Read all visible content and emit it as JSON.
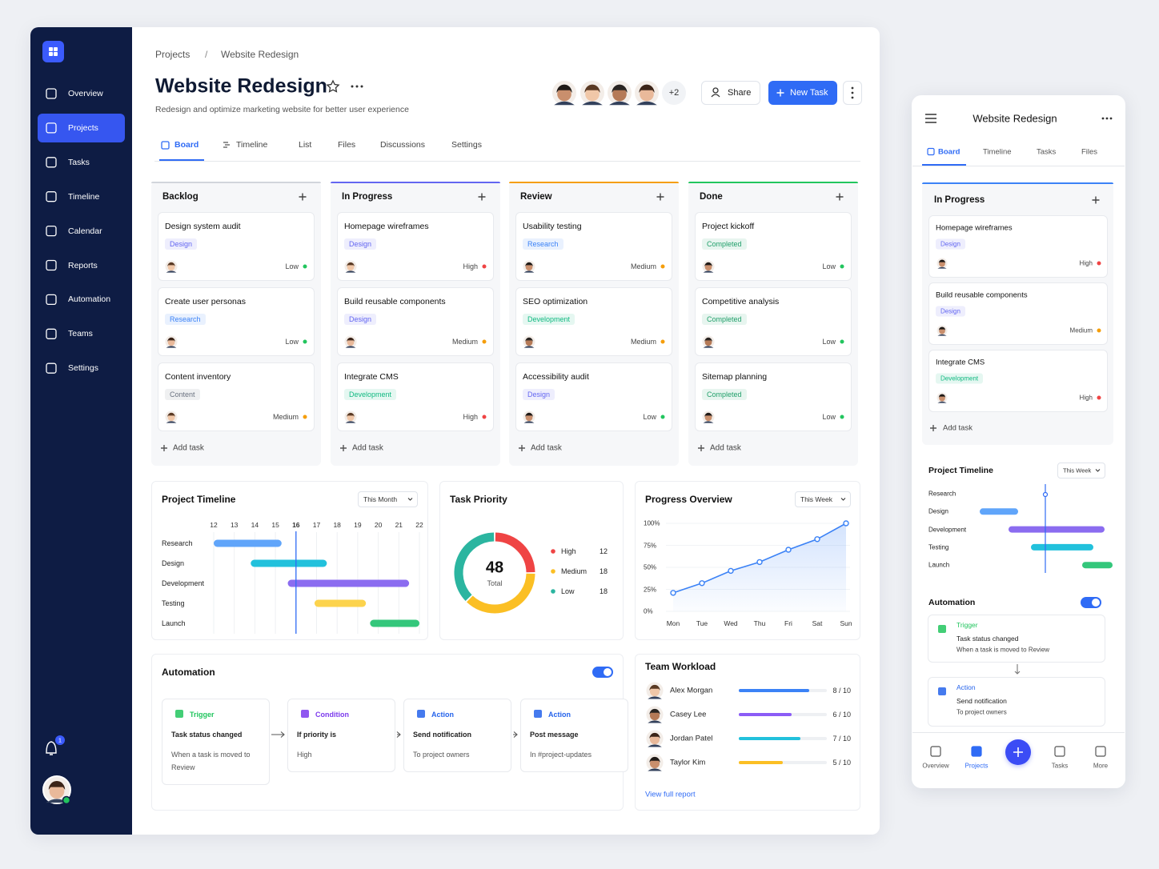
{
  "sidebar": {
    "nav": [
      "Overview",
      "Projects",
      "Tasks",
      "Timeline",
      "Calendar",
      "Reports",
      "Automation",
      "Teams",
      "Settings"
    ],
    "active": 1,
    "notifications": 1
  },
  "header": {
    "breadcrumb": [
      "Projects",
      "Website Redesign"
    ],
    "separator": "/",
    "title": "Website Redesign",
    "subtitle": "Redesign and optimize marketing website for better user experience",
    "more_members": "+2",
    "share": "Share",
    "new_task": "New Task"
  },
  "tabs": {
    "items": [
      "Board",
      "Timeline",
      "List",
      "Files",
      "Discussions",
      "Settings"
    ],
    "active": 0
  },
  "board": {
    "add_task": "Add task",
    "tag_colors": {
      "Design": "#6366f1",
      "Research": "#3b82f6",
      "Content": "#6b7280",
      "Development": "#10b981",
      "Completed": "#22a06b"
    },
    "priority_colors": {
      "Low": "#22c55e",
      "Medium": "#f59e0b",
      "High": "#ef4444"
    },
    "columns": [
      {
        "name": "Backlog",
        "color": "#d1d5db",
        "cards": [
          {
            "title": "Design system audit",
            "tag": "Design",
            "priority": "Low"
          },
          {
            "title": "Create user personas",
            "tag": "Research",
            "priority": "Low"
          },
          {
            "title": "Content inventory",
            "tag": "Content",
            "priority": "Medium"
          }
        ]
      },
      {
        "name": "In Progress",
        "color": "#6366f1",
        "cards": [
          {
            "title": "Homepage wireframes",
            "tag": "Design",
            "priority": "High"
          },
          {
            "title": "Build reusable components",
            "tag": "Design",
            "priority": "Medium"
          },
          {
            "title": "Integrate CMS",
            "tag": "Development",
            "priority": "High"
          }
        ]
      },
      {
        "name": "Review",
        "color": "#f59e0b",
        "cards": [
          {
            "title": "Usability testing",
            "tag": "Research",
            "priority": "Medium"
          },
          {
            "title": "SEO optimization",
            "tag": "Development",
            "priority": "Medium"
          },
          {
            "title": "Accessibility audit",
            "tag": "Design",
            "priority": "Low"
          }
        ]
      },
      {
        "name": "Done",
        "color": "#22c55e",
        "cards": [
          {
            "title": "Project kickoff",
            "tag": "Completed",
            "priority": "Low"
          },
          {
            "title": "Competitive analysis",
            "tag": "Completed",
            "priority": "Low"
          },
          {
            "title": "Sitemap planning",
            "tag": "Completed",
            "priority": "Low"
          }
        ]
      }
    ]
  },
  "project_timeline": {
    "title": "Project Timeline",
    "range": "This Month",
    "xlim": [
      12,
      22
    ],
    "xticks": [
      12,
      13,
      14,
      15,
      16,
      17,
      18,
      19,
      20,
      21,
      22
    ],
    "today": 16,
    "tasks": [
      {
        "name": "Research",
        "start": 12,
        "end": 15.3,
        "color": "#60a5fa"
      },
      {
        "name": "Design",
        "start": 13.8,
        "end": 17.5,
        "color": "#22c1dc"
      },
      {
        "name": "Development",
        "start": 15.6,
        "end": 21.5,
        "color": "#8b6cf0"
      },
      {
        "name": "Testing",
        "start": 16.9,
        "end": 19.4,
        "color": "#fcd34d"
      },
      {
        "name": "Launch",
        "start": 19.6,
        "end": 22,
        "color": "#34c77b"
      }
    ]
  },
  "task_priority": {
    "title": "Task Priority",
    "total": 48,
    "total_label": "Total",
    "items": [
      {
        "name": "High",
        "value": 12,
        "color": "#ef4444"
      },
      {
        "name": "Medium",
        "value": 18,
        "color": "#fbbf24"
      },
      {
        "name": "Low",
        "value": 18,
        "color": "#2bb5a0"
      }
    ]
  },
  "progress_overview": {
    "title": "Progress Overview",
    "range": "This Week",
    "categories": [
      "Mon",
      "Tue",
      "Wed",
      "Thu",
      "Fri",
      "Sat",
      "Sun"
    ],
    "values": [
      21,
      32,
      46,
      56,
      70,
      82,
      100
    ],
    "ylim": [
      0,
      100
    ],
    "yticks": [
      {
        "value": 0,
        "label": "0%"
      },
      {
        "value": 25,
        "label": "25%"
      },
      {
        "value": 50,
        "label": "50%"
      },
      {
        "value": 75,
        "label": "75%"
      },
      {
        "value": 100,
        "label": "100%"
      }
    ],
    "color": "#3b82f6"
  },
  "automation": {
    "title": "Automation",
    "enabled": true,
    "steps": [
      {
        "kind": "Trigger",
        "title": "Task status changed",
        "detail": "When a task is moved to Review",
        "color": "#22c55e"
      },
      {
        "kind": "Condition",
        "title": "If priority is",
        "detail": "High",
        "color": "#7c3aed"
      },
      {
        "kind": "Action",
        "title": "Send notification",
        "detail": "To project owners",
        "color": "#2563eb"
      },
      {
        "kind": "Action",
        "title": "Post message",
        "detail": "In #project-updates",
        "color": "#2563eb"
      }
    ]
  },
  "team_workload": {
    "title": "Team Workload",
    "members": [
      {
        "name": "Alex Morgan",
        "value": 8,
        "max": 10,
        "label": "8 / 10",
        "color": "#3b82f6"
      },
      {
        "name": "Casey Lee",
        "value": 6,
        "max": 10,
        "label": "6 / 10",
        "color": "#8b5cf6"
      },
      {
        "name": "Jordan Patel",
        "value": 7,
        "max": 10,
        "label": "7 / 10",
        "color": "#22c1dc"
      },
      {
        "name": "Taylor Kim",
        "value": 5,
        "max": 10,
        "label": "5 / 10",
        "color": "#fbbf24"
      }
    ],
    "link": "View full report"
  },
  "mobile": {
    "title": "Website Redesign",
    "tabs": [
      "Board",
      "Timeline",
      "Tasks",
      "Files"
    ],
    "active_tab": 0,
    "column": {
      "name": "In Progress",
      "color": "#3b82f6",
      "cards": [
        {
          "title": "Homepage wireframes",
          "tag": "Design",
          "priority": "High"
        },
        {
          "title": "Build reusable components",
          "tag": "Design",
          "priority": "Medium"
        },
        {
          "title": "Integrate CMS",
          "tag": "Development",
          "priority": "High"
        }
      ]
    },
    "add_task": "Add task",
    "timeline": {
      "title": "Project Timeline",
      "range": "This Week",
      "xlim": [
        12,
        22
      ],
      "today": 17.8,
      "tasks": [
        {
          "name": "Research"
        },
        {
          "name": "Design",
          "start": 13.7,
          "end": 16.1,
          "color": "#60a5fa"
        },
        {
          "name": "Development",
          "start": 15.5,
          "end": 21.5,
          "color": "#8b6cf0"
        },
        {
          "name": "Testing",
          "start": 16.9,
          "end": 20.8,
          "color": "#22c1dc"
        },
        {
          "name": "Launch",
          "start": 20.1,
          "end": 22,
          "color": "#34c77b"
        }
      ]
    },
    "automation": {
      "title": "Automation",
      "enabled": true,
      "trigger": {
        "kind": "Trigger",
        "title": "Task status changed",
        "detail": "When a task is moved to Review",
        "color": "#22c55e"
      },
      "action": {
        "kind": "Action",
        "title": "Send notification",
        "detail": "To project owners",
        "color": "#2563eb"
      }
    },
    "nav": [
      "Overview",
      "Projects",
      "Tasks",
      "More"
    ],
    "active_nav": 1
  }
}
